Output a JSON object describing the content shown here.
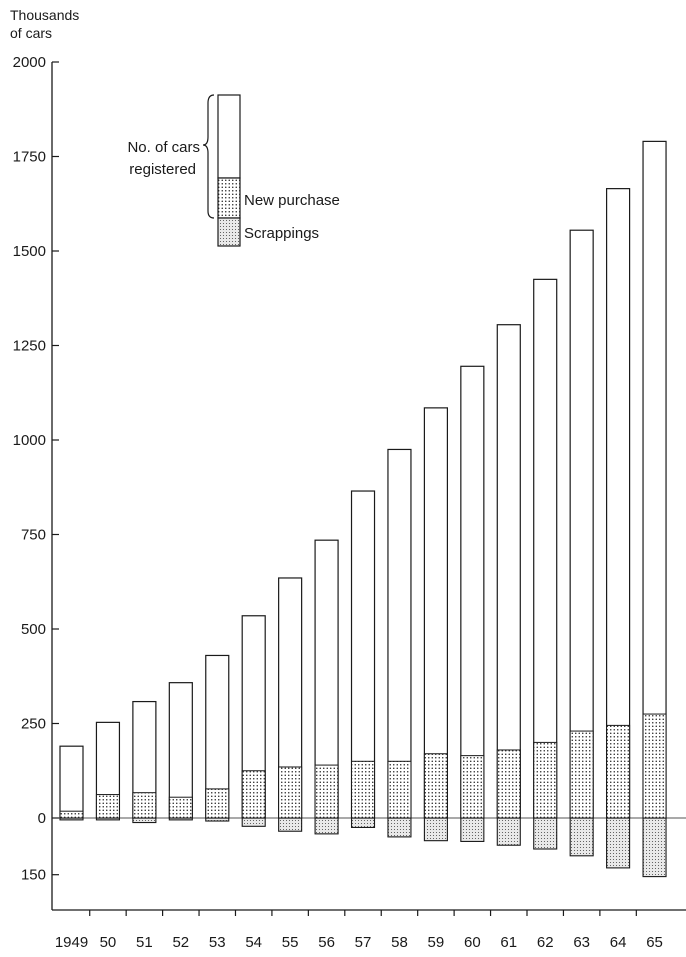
{
  "chart_data": {
    "type": "bar",
    "title": "",
    "ylabel": "Thousands of cars",
    "ylabel_lines": [
      "Thousands",
      "of cars"
    ],
    "xlabel": "",
    "ylim": [
      -300,
      2000
    ],
    "yticks": [
      2000,
      1750,
      1500,
      1250,
      1000,
      750,
      500,
      250,
      0,
      -150
    ],
    "ytick_labels": [
      "2000",
      "1750",
      "1500",
      "1250",
      "1000",
      "750",
      "500",
      "250",
      "0",
      "150"
    ],
    "categories": [
      "1949",
      "50",
      "51",
      "52",
      "53",
      "54",
      "55",
      "56",
      "57",
      "58",
      "59",
      "60",
      "61",
      "62",
      "63",
      "64",
      "65"
    ],
    "series": [
      {
        "name": "No. of cars registered",
        "values": [
          190,
          253,
          308,
          358,
          430,
          535,
          635,
          735,
          865,
          975,
          1085,
          1195,
          1305,
          1425,
          1555,
          1665,
          1790
        ]
      },
      {
        "name": "New purchase",
        "values": [
          18,
          62,
          67,
          55,
          77,
          125,
          135,
          140,
          150,
          150,
          170,
          165,
          180,
          200,
          230,
          245,
          275
        ]
      },
      {
        "name": "Scrappings",
        "values": [
          5,
          5,
          12,
          5,
          8,
          22,
          35,
          42,
          25,
          50,
          60,
          62,
          72,
          82,
          100,
          132,
          155
        ]
      }
    ],
    "legend": {
      "position": "top-left",
      "bracket_label_lines": [
        "No. of cars",
        "registered"
      ],
      "new_purchase": "New purchase",
      "scrappings": "Scrappings"
    },
    "grid": false,
    "colors": {
      "bar_outline": "#1a1a1a",
      "dots": "#222222",
      "scrap_dots": "#444444",
      "scrap_fill": "#e9e9e9"
    }
  }
}
